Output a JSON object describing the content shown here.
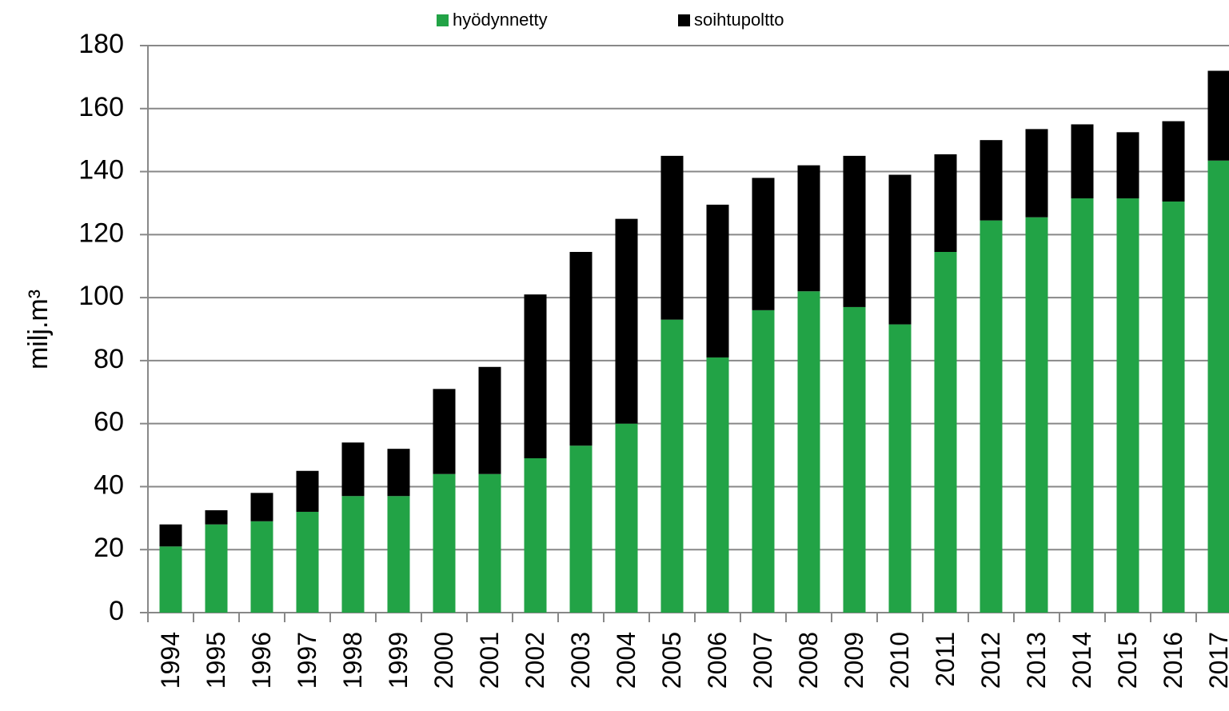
{
  "chart_data": {
    "type": "stacked_bar",
    "y_label": "milj.m³",
    "categories": [
      "1994",
      "1995",
      "1996",
      "1997",
      "1998",
      "1999",
      "2000",
      "2001",
      "2002",
      "2003",
      "2004",
      "2005",
      "2006",
      "2007",
      "2008",
      "2009",
      "2010",
      "2011",
      "2012",
      "2013",
      "2014",
      "2015",
      "2016",
      "2017"
    ],
    "series": [
      {
        "name": "hyödynnetty",
        "color": "#22a346",
        "values": [
          21,
          28,
          29,
          32,
          37,
          37,
          44,
          44,
          49,
          53,
          60,
          93,
          81,
          96,
          102,
          97,
          91.5,
          114.5,
          124.5,
          125.5,
          131.5,
          131.5,
          130.5,
          143.5
        ]
      },
      {
        "name": "soihtupoltto",
        "color": "#000000",
        "values": [
          7,
          4.5,
          9,
          13,
          17,
          15,
          27,
          34,
          52,
          61.5,
          65,
          52,
          48.5,
          42,
          40,
          48,
          47.5,
          31,
          25.5,
          28,
          23.5,
          21,
          25.5,
          28.5
        ]
      }
    ],
    "ylim": [
      0,
      180
    ],
    "yticks": [
      0,
      20,
      40,
      60,
      80,
      100,
      120,
      140,
      160,
      180
    ],
    "grid": true
  }
}
